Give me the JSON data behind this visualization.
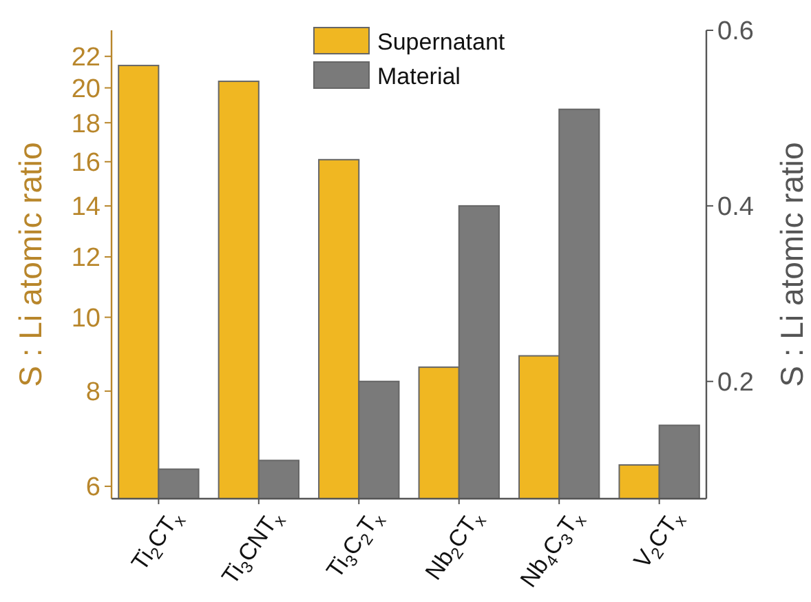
{
  "chart_data": {
    "type": "bar",
    "categories": [
      "Ti$_{2}$CT$_{x}$",
      "Ti$_{3}$CNT$_{x}$",
      "Ti$_{3}$C$_{2}$T$_{x}$",
      "Nb$_{2}$CT$_{x}$",
      "Nb$_{4}$C$_{3}$T$_{x}$",
      "V$_{2}$CT$_{x}$"
    ],
    "series": [
      {
        "name": "Supernatant",
        "color": "#f0b722",
        "values": [
          21.4,
          20.4,
          16.1,
          8.6,
          8.9,
          6.4
        ]
      },
      {
        "name": "Material",
        "color": "#7a7a7a",
        "axis": "y2",
        "values": [
          0.1,
          0.11,
          0.2,
          0.4,
          0.51,
          0.15
        ]
      }
    ],
    "ylabel": "S : Li atomic ratio",
    "y2label": "S : Li atomic ratio",
    "ylim": [
      5.78,
      23.8
    ],
    "yticks": [
      6,
      8,
      10,
      12,
      14,
      16,
      18,
      20,
      22
    ],
    "y2lim": [
      0.0664,
      0.6
    ],
    "y2ticks": [
      0.2,
      0.4,
      0.6
    ],
    "log": "y",
    "legend": "top",
    "grid": false
  }
}
